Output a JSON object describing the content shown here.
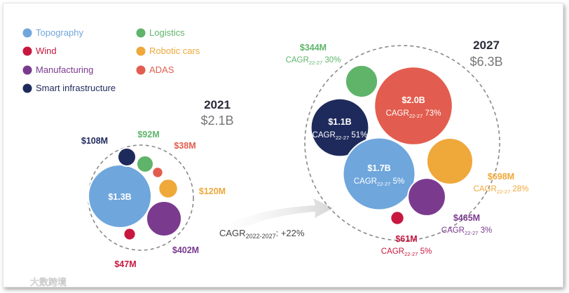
{
  "colors": {
    "topography": "#6fa6dc",
    "wind": "#c8173f",
    "manufacturing": "#7a3a8e",
    "smart_infrastructure": "#1f2a5c",
    "logistics": "#5fb46a",
    "robotic_cars": "#efa83a",
    "adas": "#e25d4f",
    "text_dark": "#2a2a3a",
    "text_grey": "#777777",
    "dash": "#888888",
    "arrow": "#dcdcdc"
  },
  "legend": [
    {
      "label": "Topography",
      "color": "#6fa6dc",
      "text_color": "#6fa6dc"
    },
    {
      "label": "Wind",
      "color": "#c8173f",
      "text_color": "#c8173f"
    },
    {
      "label": "Manufacturing",
      "color": "#7a3a8e",
      "text_color": "#7a3a8e"
    },
    {
      "label": "Smart infrastructure",
      "color": "#1f2a5c",
      "text_color": "#1f2a5c"
    },
    {
      "label": "Logistics",
      "color": "#5fb46a",
      "text_color": "#5fb46a"
    },
    {
      "label": "Robotic cars",
      "color": "#efa83a",
      "text_color": "#efa83a"
    },
    {
      "label": "ADAS",
      "color": "#e25d4f",
      "text_color": "#e25d4f"
    }
  ],
  "chart_data": {
    "type": "bubble",
    "unit": "USD",
    "groups": [
      {
        "year": "2021",
        "total": "$2.1B",
        "items": [
          {
            "segment": "Topography",
            "value_musd": 1300,
            "label": "$1.3B"
          },
          {
            "segment": "Smart infrastructure",
            "value_musd": 108,
            "label": "$108M"
          },
          {
            "segment": "Logistics",
            "value_musd": 92,
            "label": "$92M"
          },
          {
            "segment": "ADAS",
            "value_musd": 38,
            "label": "$38M"
          },
          {
            "segment": "Robotic cars",
            "value_musd": 120,
            "label": "$120M"
          },
          {
            "segment": "Manufacturing",
            "value_musd": 402,
            "label": "$402M"
          },
          {
            "segment": "Wind",
            "value_musd": 47,
            "label": "$47M"
          }
        ]
      },
      {
        "year": "2027",
        "total": "$6.3B",
        "items": [
          {
            "segment": "ADAS",
            "value_musd": 2000,
            "label": "$2.0B",
            "cagr": "73%"
          },
          {
            "segment": "Smart infrastructure",
            "value_musd": 1100,
            "label": "$1.1B",
            "cagr": "51%"
          },
          {
            "segment": "Topography",
            "value_musd": 1700,
            "label": "$1.7B",
            "cagr": "5%"
          },
          {
            "segment": "Logistics",
            "value_musd": 344,
            "label": "$344M",
            "cagr": "30%"
          },
          {
            "segment": "Robotic cars",
            "value_musd": 698,
            "label": "$698M",
            "cagr": "28%"
          },
          {
            "segment": "Manufacturing",
            "value_musd": 465,
            "label": "$465M",
            "cagr": "3%"
          },
          {
            "segment": "Wind",
            "value_musd": 61,
            "label": "$61M",
            "cagr": "5%"
          }
        ]
      }
    ],
    "cagr_prefix": "CAGR",
    "cagr_sub": "22-27",
    "overall_growth": {
      "label_main": "CAGR",
      "label_sub": "2022-2027",
      "value": ": +22%"
    }
  },
  "watermark": {
    "text": "大数跨境"
  }
}
